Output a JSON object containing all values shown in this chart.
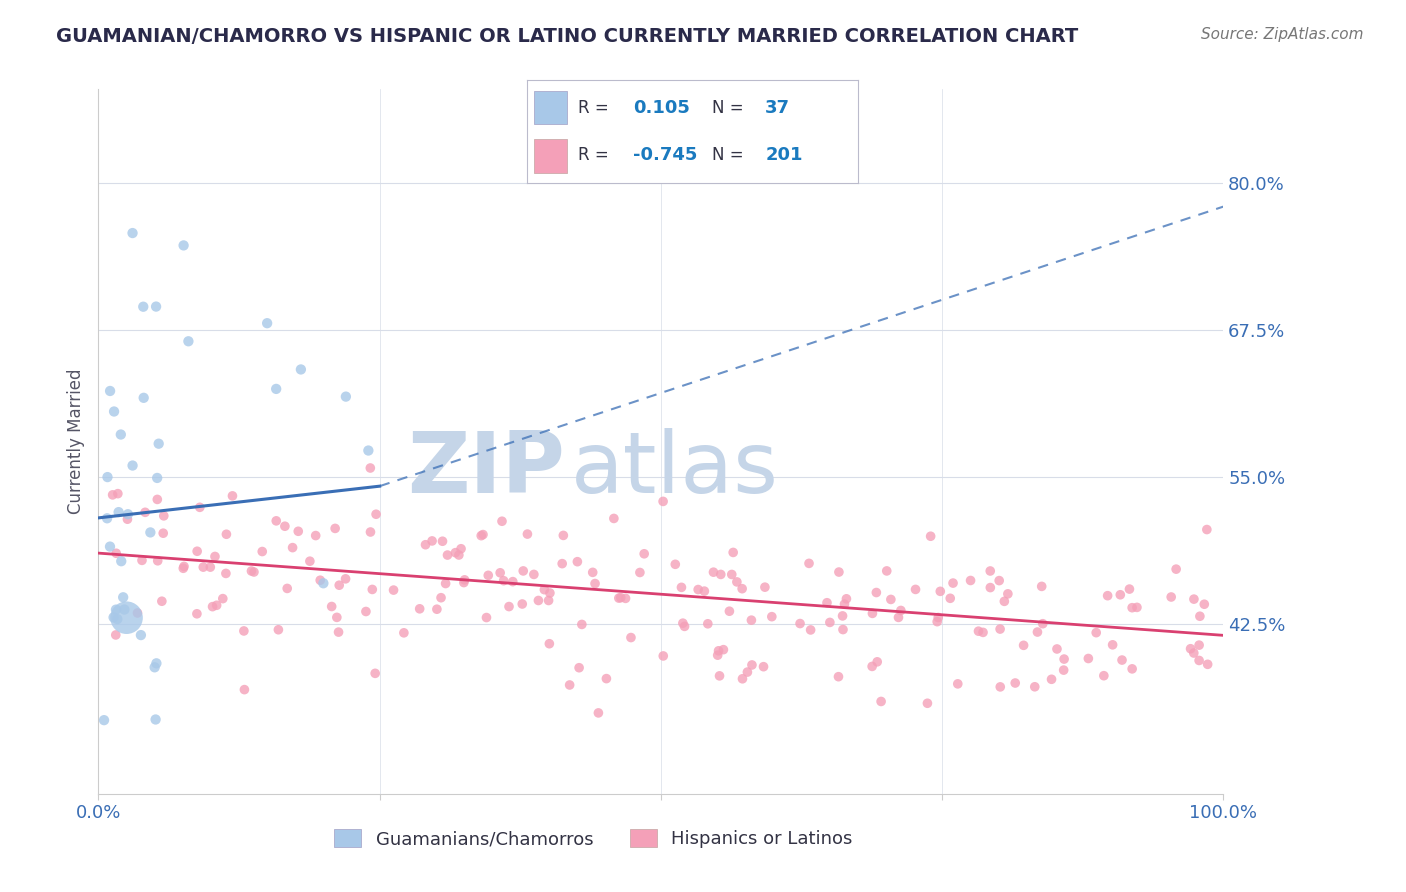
{
  "title": "GUAMANIAN/CHAMORRO VS HISPANIC OR LATINO CURRENTLY MARRIED CORRELATION CHART",
  "source": "Source: ZipAtlas.com",
  "ylabel": "Currently Married",
  "xlim": [
    0,
    100
  ],
  "ylim": [
    28,
    88
  ],
  "yticks": [
    42.5,
    55.0,
    67.5,
    80.0
  ],
  "ytick_labels": [
    "42.5%",
    "55.0%",
    "67.5%",
    "80.0%"
  ],
  "blue_R": 0.105,
  "blue_N": 37,
  "pink_R": -0.745,
  "pink_N": 201,
  "blue_color": "#a8c8e8",
  "blue_line_color": "#3a6eb5",
  "pink_color": "#f4a0b8",
  "pink_line_color": "#d94070",
  "legend_R_color": "#1a7abf",
  "legend_N_color": "#1a7abf",
  "background_color": "#ffffff",
  "watermark_ZIP_color": "#c5d5e8",
  "watermark_atlas_color": "#c5d5e8",
  "grid_color": "#d8dde8",
  "title_color": "#2a2a4a",
  "axis_label_color": "#3a6eb5",
  "blue_line_x0": 0,
  "blue_line_y0": 51.5,
  "blue_line_x1": 25,
  "blue_line_y1": 54.2,
  "blue_dashed_x0": 25,
  "blue_dashed_y0": 54.2,
  "blue_dashed_x1": 100,
  "blue_dashed_y1": 78.0,
  "pink_line_x0": 0,
  "pink_line_y0": 48.5,
  "pink_line_x1": 100,
  "pink_line_y1": 41.5
}
